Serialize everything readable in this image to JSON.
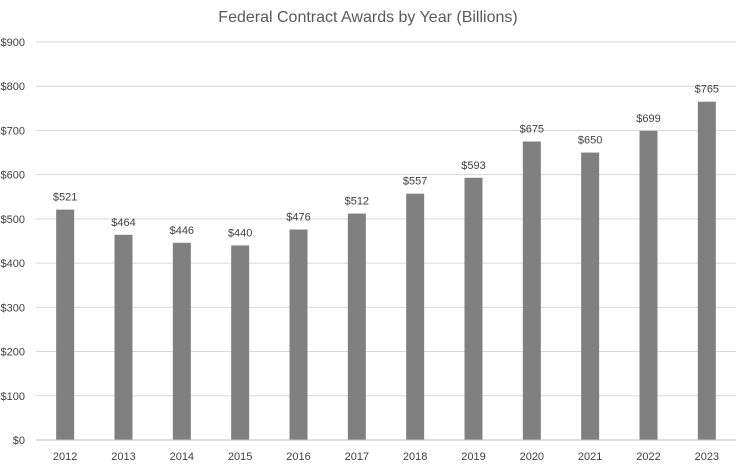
{
  "chart_data": {
    "type": "bar",
    "title": "Federal Contract Awards by Year (Billions)",
    "xlabel": "",
    "ylabel": "",
    "categories": [
      "2012",
      "2013",
      "2014",
      "2015",
      "2016",
      "2017",
      "2018",
      "2019",
      "2020",
      "2021",
      "2022",
      "2023"
    ],
    "values": [
      521,
      464,
      446,
      440,
      476,
      512,
      557,
      593,
      675,
      650,
      699,
      765
    ],
    "data_labels": [
      "$521",
      "$464",
      "$446",
      "$440",
      "$476",
      "$512",
      "$557",
      "$593",
      "$675",
      "$650",
      "$699",
      "$765"
    ],
    "ylim": [
      0,
      900
    ],
    "y_ticks": [
      0,
      100,
      200,
      300,
      400,
      500,
      600,
      700,
      800,
      900
    ],
    "y_tick_labels": [
      "$0",
      "$100",
      "$200",
      "$300",
      "$400",
      "$500",
      "$600",
      "$700",
      "$800",
      "$900"
    ],
    "grid": true,
    "legend": "none",
    "bar_color": "#808080"
  }
}
